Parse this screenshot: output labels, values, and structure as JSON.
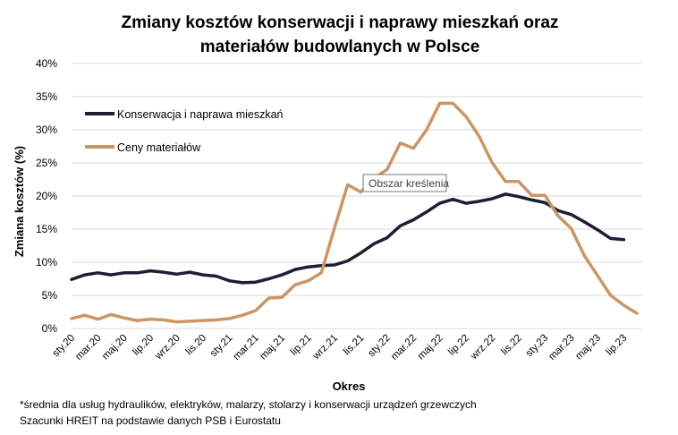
{
  "chart_data": {
    "type": "line",
    "title_lines": [
      "Zmiany kosztów konserwacji i naprawy mieszkań oraz",
      "materiałów budowlanych w Polsce"
    ],
    "xlabel": "Okres",
    "ylabel": "Zmiana kosztów (%)",
    "ylim": [
      0,
      40
    ],
    "y_ticks": [
      "0%",
      "5%",
      "10%",
      "15%",
      "20%",
      "25%",
      "30%",
      "35%",
      "40%"
    ],
    "x_tick_labels": [
      "sty.20",
      "mar.20",
      "maj.20",
      "lip.20",
      "wrz.20",
      "lis.20",
      "sty.21",
      "mar.21",
      "maj.21",
      "lip.21",
      "wrz.21",
      "lis.21",
      "sty.22",
      "mar.22",
      "maj.22",
      "lip.22",
      "wrz.22",
      "lis.22",
      "sty.23",
      "mar.23",
      "maj.23",
      "lip.23"
    ],
    "grid": true,
    "legend_position": "top-left",
    "tooltip": "Obszar kreślenia",
    "series": [
      {
        "name": "Konserwacja i naprawa mieszkań",
        "color": "#1c1f33",
        "values": [
          7.4,
          8.1,
          8.4,
          8.1,
          8.4,
          8.4,
          8.7,
          8.5,
          8.2,
          8.5,
          8.1,
          7.9,
          7.2,
          6.9,
          7.0,
          7.5,
          8.1,
          8.9,
          9.3,
          9.5,
          9.6,
          10.2,
          11.4,
          12.8,
          13.7,
          15.5,
          16.4,
          17.6,
          18.9,
          19.5,
          18.9,
          19.2,
          19.6,
          20.3,
          19.9,
          19.4,
          19.0,
          17.8,
          17.2,
          16.1,
          14.9,
          13.6,
          13.4
        ]
      },
      {
        "name": "Ceny materiałów",
        "color": "#cc9566",
        "values": [
          1.5,
          2.0,
          1.4,
          2.1,
          1.6,
          1.2,
          1.4,
          1.3,
          1.0,
          1.1,
          1.2,
          1.3,
          1.5,
          2.0,
          2.7,
          4.6,
          4.7,
          6.6,
          7.2,
          8.4,
          15.2,
          21.7,
          20.6,
          22.7,
          24.0,
          28.0,
          27.2,
          30.0,
          34.0,
          34.0,
          32.0,
          29.0,
          25.0,
          22.2,
          22.2,
          20.1,
          20.1,
          17.0,
          15.1,
          11.0,
          8.0,
          5.0,
          3.5,
          2.3
        ]
      }
    ]
  },
  "footnotes": [
    "*średnia dla usług hydraulików, elektryków, malarzy, stolarzy i konserwacji urządzeń grzewczych",
    "Szacunki HREIT na podstawie danych PSB i Eurostatu"
  ]
}
